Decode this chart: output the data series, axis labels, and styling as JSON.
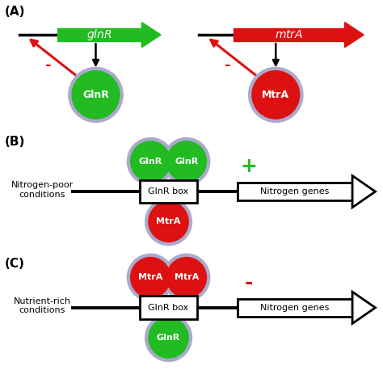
{
  "green": "#22bb22",
  "red": "#dd1111",
  "gray_outline": "#aaaacc",
  "black": "#000000",
  "white": "#ffffff",
  "panel_A_label": "(A)",
  "panel_B_label": "(B)",
  "panel_C_label": "(C)",
  "glnR_gene": "glnR",
  "mtrA_gene": "mtrA",
  "GlnR_protein": "GlnR",
  "MtrA_protein": "MtrA",
  "GlnR_box": "GlnR box",
  "Nitrogen_genes": "Nitrogen genes",
  "Nitrogen_poor": "Nitrogen-poor\nconditions",
  "Nutrient_rich": "Nutrient-rich\nconditions",
  "plus": "+",
  "minus": "-",
  "figsize": [
    4.74,
    4.79
  ],
  "dpi": 100,
  "xlim": [
    0,
    10
  ],
  "ylim": [
    0,
    10
  ]
}
